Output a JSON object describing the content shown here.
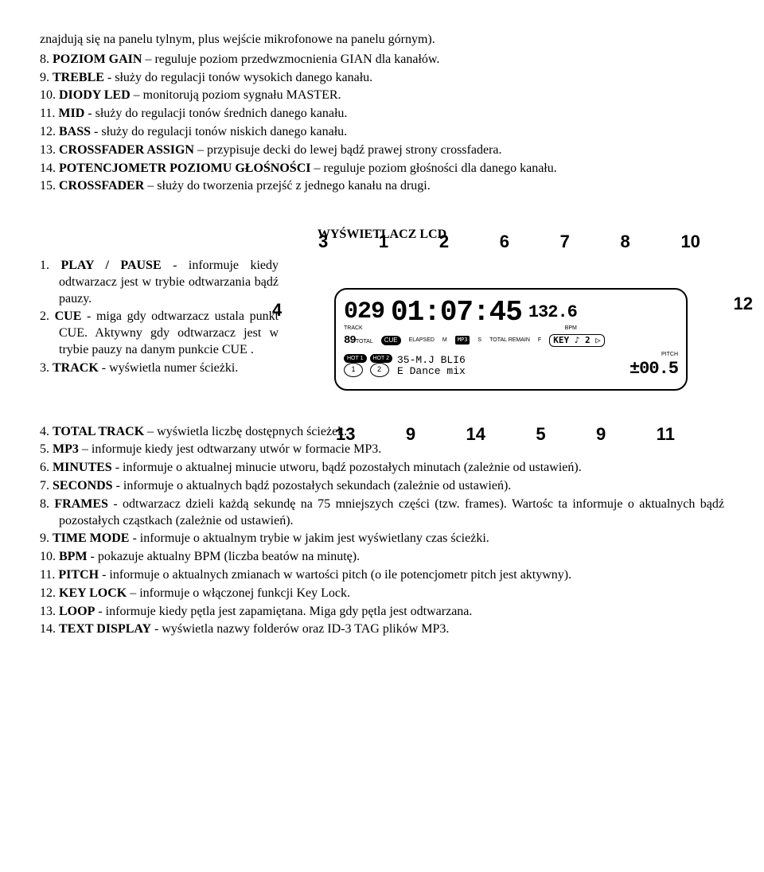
{
  "intro_text": "znajdują się na panelu tylnym, plus wejście mikrofonowe na panelu górnym).",
  "list1": [
    {
      "n": "8.",
      "label": "POZIOM GAIN",
      "text": " – reguluje poziom przedwzmocnienia GIAN dla kanałów."
    },
    {
      "n": "9.",
      "label": "TREBLE",
      "text": " - służy do regulacji tonów wysokich danego kanału."
    },
    {
      "n": "10.",
      "label": "DIODY LED",
      "text": " – monitorują poziom sygnału MASTER."
    },
    {
      "n": "11.",
      "label": "MID",
      "text": " - służy do regulacji tonów średnich danego kanału."
    },
    {
      "n": "12.",
      "label": "BASS",
      "text": " - służy do regulacji tonów niskich danego kanału."
    },
    {
      "n": "13.",
      "label": "CROSSFADER ASSIGN",
      "text": " – przypisuje decki do lewej bądź prawej strony crossfadera."
    },
    {
      "n": "14.",
      "label": "POTENCJOMETR POZIOMU GŁOŚNOŚCI",
      "text": " – reguluje poziom głośności dla danego kanału."
    },
    {
      "n": "15.",
      "label": "CROSSFADER",
      "text": " – służy do tworzenia przejść z jednego kanału na drugi."
    }
  ],
  "section_title": "WYŚWIETLACZ LCD",
  "left_items": [
    {
      "n": "1.",
      "label": "PLAY / PAUSE",
      "text": " - informuje kiedy odtwarzacz jest w trybie odtwarzania bądź pauzy."
    },
    {
      "n": "2.",
      "label": "CUE",
      "text": " - miga gdy odtwarzacz ustala punkt CUE. Aktywny gdy odtwarzacz jest w trybie pauzy na danym punkcie CUE ."
    },
    {
      "n": "3.",
      "label": "TRACK",
      "text": " - wyświetla numer ścieżki."
    }
  ],
  "bottom_items": [
    {
      "n": "4.",
      "label": "TOTAL TRACK",
      "text": " – wyświetla liczbę dostępnych ścieżek."
    },
    {
      "n": "5.",
      "label": "MP3",
      "text": " – informuje kiedy jest odtwarzany utwór w formacie MP3."
    },
    {
      "n": "6.",
      "label": "MINUTES",
      "text": " - informuje o aktualnej minucie utworu, bądź pozostałych minutach (zależnie od ustawień)."
    },
    {
      "n": "7.",
      "label": "SECONDS",
      "text": " - informuje o aktualnych bądź pozostałych sekundach (zależnie od ustawień)."
    },
    {
      "n": "8.",
      "label": "FRAMES",
      "text": " - odtwarzacz dzieli każdą sekundę na 75 mniejszych części (tzw. frames). Wartośc ta informuje o aktualnych bądź pozostałych cząstkach (zależnie od ustawień)."
    },
    {
      "n": "9.",
      "label": "TIME MODE",
      "text": " - informuje o aktualnym trybie w jakim jest wyświetlany czas ścieżki."
    },
    {
      "n": "10.",
      "label": "BPM",
      "text": " - pokazuje aktualny BPM (liczba beatów na minutę)."
    },
    {
      "n": "11.",
      "label": "PITCH",
      "text": " - informuje o aktualnych zmianach w wartości pitch (o ile potencjometr pitch jest aktywny)."
    },
    {
      "n": "12.",
      "label": "KEY LOCK",
      "text": " – informuje o włączonej  funkcji Key Lock."
    },
    {
      "n": "13.",
      "label": "LOOP",
      "text": " - informuje kiedy pętla jest zapamiętana. Miga gdy pętla jest odtwarzana."
    },
    {
      "n": "14.",
      "label": "TEXT DISPLAY",
      "text": " - wyświetla nazwy folderów oraz ID-3 TAG plików MP3."
    }
  ],
  "diagram": {
    "top_callouts": [
      "3",
      "1",
      "2",
      "6",
      "7",
      "8",
      "10"
    ],
    "bottom_callouts": [
      "13",
      "9",
      "14",
      "5",
      "9",
      "11"
    ],
    "left_callout": "4",
    "right_callout": "12",
    "track_num": "029",
    "time_main": "01:07:45",
    "bpm": "132.6",
    "bpm_label": "BPM",
    "total_track": "89",
    "track_label": "TRACK",
    "cue_label": "CUE",
    "elapsed": "ELAPSED",
    "remain": "TOTAL REMAIN",
    "m_label": "M",
    "s_label": "S",
    "f_label": "F",
    "mp3": "MP3",
    "key": "KEY ♪ 2 ▷",
    "hot1": "HOT 1",
    "hot2": "HOT 2",
    "text_line1": "35-M.J   BLI6",
    "text_line2": "E Dance  mix",
    "pitch": "±00.5",
    "pitch_label": "PITCH"
  }
}
